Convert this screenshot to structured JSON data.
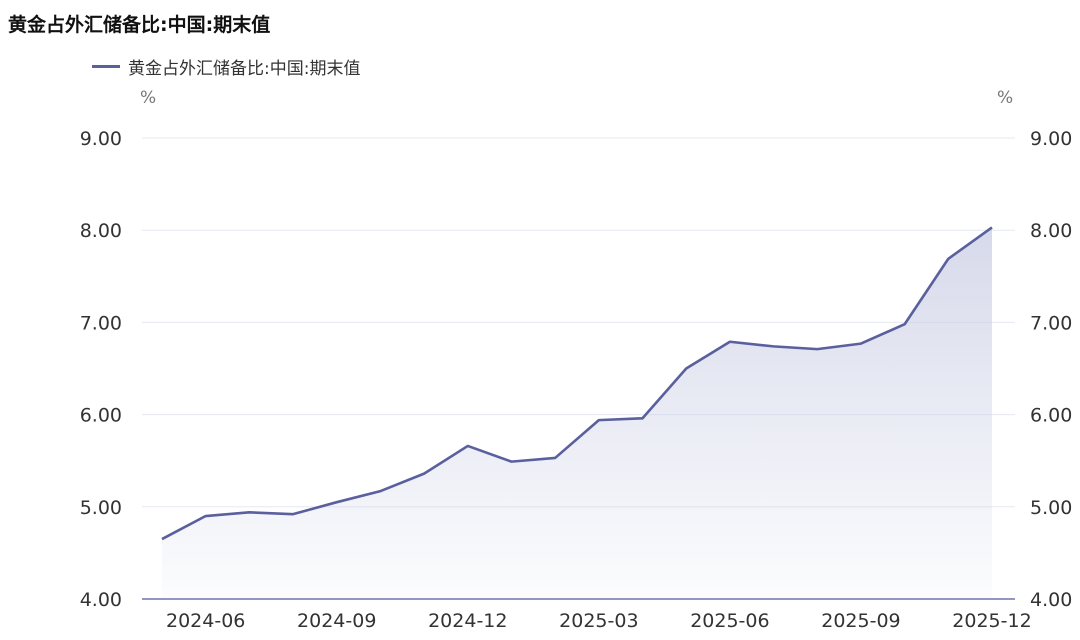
{
  "title": "黄金占外汇储备比:中国:期末值",
  "colors": {
    "line": "#5a5f9e",
    "area_top": "#c9cde4",
    "grid": "#e6e8f2",
    "axis": "#6e74b0",
    "tick_text": "#333333"
  },
  "chart_data": {
    "type": "area",
    "title": "黄金占外汇储备比:中国:期末值",
    "legend": {
      "position": "top-left",
      "entries": [
        "黄金占外汇储备比:中国:期末值"
      ]
    },
    "y_unit_left": "%",
    "y_unit_right": "%",
    "x_tick_labels": [
      "2024-06",
      "2024-09",
      "2024-12",
      "2025-03",
      "2025-06",
      "2025-09",
      "2025-12"
    ],
    "y_tick_labels": [
      "4.00",
      "5.00",
      "6.00",
      "7.00",
      "8.00",
      "9.00"
    ],
    "ylim": [
      4.0,
      9.0
    ],
    "grid": true,
    "x": [
      "2024-05",
      "2024-06",
      "2024-07",
      "2024-08",
      "2024-09",
      "2024-10",
      "2024-11",
      "2024-12",
      "2025-01",
      "2025-02",
      "2025-03",
      "2025-04",
      "2025-05",
      "2025-06",
      "2025-07",
      "2025-08",
      "2025-09",
      "2025-10",
      "2025-11",
      "2025-12"
    ],
    "series": [
      {
        "name": "黄金占外汇储备比:中国:期末值",
        "values": [
          4.65,
          4.9,
          4.94,
          4.92,
          5.05,
          5.17,
          5.36,
          5.66,
          5.49,
          5.53,
          5.94,
          5.96,
          6.5,
          6.79,
          6.74,
          6.71,
          6.77,
          6.98,
          7.69,
          8.03
        ]
      }
    ]
  }
}
